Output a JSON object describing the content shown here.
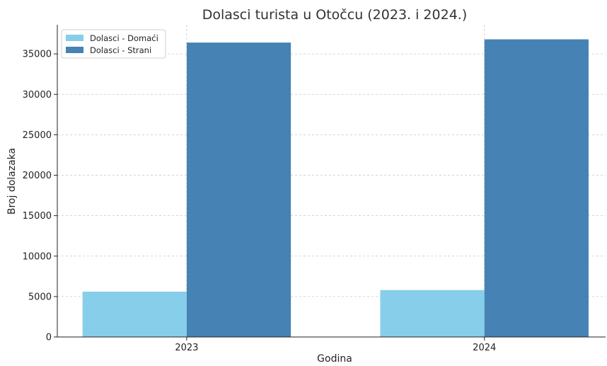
{
  "chart_data": {
    "type": "bar",
    "title": "Dolasci turista u Otočcu (2023. i 2024.)",
    "xlabel": "Godina",
    "ylabel": "Broj dolazaka",
    "categories": [
      "2023",
      "2024"
    ],
    "series": [
      {
        "name": "Dolasci - Domaći",
        "values": [
          5600,
          5800
        ],
        "color": "#87ceeb"
      },
      {
        "name": "Dolasci - Strani",
        "values": [
          36400,
          36800
        ],
        "color": "#4682b4"
      }
    ],
    "ylim": [
      0,
      38600
    ],
    "yticks": [
      "0",
      "5000",
      "10000",
      "15000",
      "20000",
      "25000",
      "30000",
      "35000"
    ],
    "grid": true,
    "legend_position": "top-left"
  }
}
